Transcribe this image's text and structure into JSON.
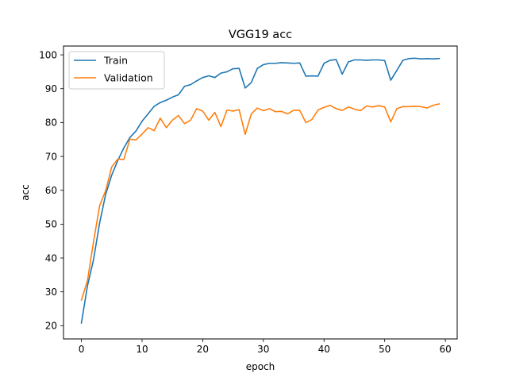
{
  "chart_data": {
    "type": "line",
    "title": "VGG19 acc",
    "xlabel": "epoch",
    "ylabel": "acc",
    "xlim": [
      -2.95,
      61.95
    ],
    "ylim": [
      16.1,
      102.6
    ],
    "xticks": [
      0,
      10,
      20,
      30,
      40,
      50,
      60
    ],
    "yticks": [
      20,
      30,
      40,
      50,
      60,
      70,
      80,
      90,
      100
    ],
    "grid": false,
    "legend_position": "top-left",
    "x": [
      0,
      1,
      2,
      3,
      4,
      5,
      6,
      7,
      8,
      9,
      10,
      11,
      12,
      13,
      14,
      15,
      16,
      17,
      18,
      19,
      20,
      21,
      22,
      23,
      24,
      25,
      26,
      27,
      28,
      29,
      30,
      31,
      32,
      33,
      34,
      35,
      36,
      37,
      38,
      39,
      40,
      41,
      42,
      43,
      44,
      45,
      46,
      47,
      48,
      49,
      50,
      51,
      52,
      53,
      54,
      55,
      56,
      57,
      58,
      59
    ],
    "series": [
      {
        "name": "Train",
        "color": "#1f77b4",
        "values": [
          20.8,
          31.8,
          39.5,
          50.3,
          58.8,
          64.5,
          68.8,
          72.5,
          75.6,
          77.5,
          80.4,
          82.6,
          84.8,
          85.9,
          86.6,
          87.5,
          88.2,
          90.7,
          91.2,
          92.3,
          93.3,
          93.8,
          93.3,
          94.6,
          95.0,
          95.9,
          96.0,
          90.2,
          91.8,
          96.0,
          97.1,
          97.5,
          97.5,
          97.7,
          97.6,
          97.5,
          97.6,
          93.7,
          93.8,
          93.7,
          97.5,
          98.4,
          98.6,
          94.3,
          97.9,
          98.5,
          98.5,
          98.4,
          98.5,
          98.5,
          98.3,
          92.5,
          95.4,
          98.4,
          98.9,
          99.0,
          98.8,
          98.9,
          98.8,
          98.9
        ]
      },
      {
        "name": "Validation",
        "color": "#ff7f0e",
        "values": [
          27.6,
          33.3,
          44.8,
          55.4,
          59.9,
          66.9,
          69.2,
          69.1,
          75.1,
          74.9,
          76.6,
          78.5,
          77.6,
          81.3,
          78.5,
          80.7,
          82.1,
          79.7,
          80.7,
          84.1,
          83.4,
          80.7,
          83.0,
          78.8,
          83.7,
          83.4,
          83.8,
          76.5,
          82.5,
          84.3,
          83.5,
          84.1,
          83.2,
          83.3,
          82.6,
          83.6,
          83.6,
          80.0,
          80.9,
          83.7,
          84.5,
          85.1,
          84.1,
          83.6,
          84.6,
          84.0,
          83.5,
          84.9,
          84.6,
          85.0,
          84.6,
          80.2,
          84.1,
          84.7,
          84.7,
          84.8,
          84.7,
          84.3,
          85.1,
          85.5
        ]
      }
    ]
  }
}
